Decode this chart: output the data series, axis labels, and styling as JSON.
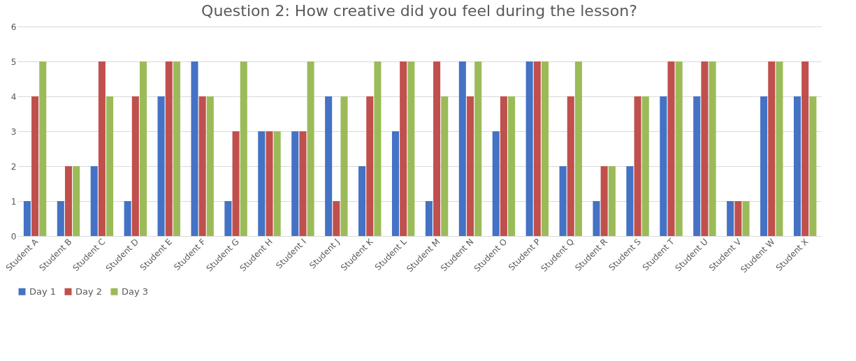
{
  "chart_data": {
    "type": "bar",
    "title": "Question 2: How creative did you feel during the lesson?",
    "categories": [
      "Student A",
      "Student B",
      "Student C",
      "Student D",
      "Student E",
      "Student F",
      "Student G",
      "Student H",
      "Student I",
      "Student J",
      "Student K",
      "Student L",
      "Student M",
      "Student N",
      "Student O",
      "Student P",
      "Student Q",
      "Student R",
      "Student S",
      "Student T",
      "Student U",
      "Student V",
      "Student W",
      "Student X"
    ],
    "series": [
      {
        "name": "Day 1",
        "color": "#4472c4",
        "values": [
          1,
          1,
          2,
          1,
          4,
          5,
          1,
          3,
          3,
          4,
          2,
          3,
          1,
          5,
          3,
          5,
          2,
          1,
          2,
          4,
          4,
          1,
          4,
          4
        ]
      },
      {
        "name": "Day 2",
        "color": "#c0504d",
        "values": [
          4,
          2,
          5,
          4,
          5,
          4,
          3,
          3,
          3,
          1,
          4,
          5,
          5,
          4,
          4,
          5,
          4,
          2,
          4,
          5,
          5,
          1,
          5,
          5
        ]
      },
      {
        "name": "Day 3",
        "color": "#9bbb59",
        "values": [
          5,
          2,
          4,
          5,
          5,
          4,
          5,
          3,
          5,
          4,
          5,
          5,
          4,
          5,
          4,
          5,
          5,
          2,
          4,
          5,
          5,
          1,
          5,
          4
        ]
      }
    ],
    "ylim": [
      0,
      6
    ],
    "yticks": [
      0,
      1,
      2,
      3,
      4,
      5,
      6
    ],
    "grid": "y",
    "legend": "bottom"
  }
}
